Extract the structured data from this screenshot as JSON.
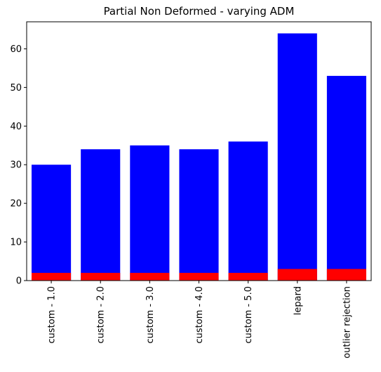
{
  "chart_data": {
    "type": "bar",
    "title": "Partial Non Deformed - varying ADM",
    "xlabel": "",
    "ylabel": "",
    "categories": [
      "custom - 1.0",
      "custom - 2.0",
      "custom - 3.0",
      "custom - 4.0",
      "custom - 5.0",
      "lepard",
      "outlier rejection"
    ],
    "series": [
      {
        "color": "#0000ff",
        "values": [
          30,
          34,
          35,
          34,
          36,
          64,
          53
        ]
      },
      {
        "color": "#ff0000",
        "values": [
          2,
          2,
          2,
          2,
          2,
          3,
          3
        ]
      }
    ],
    "ylim": [
      0,
      67
    ],
    "yticks": [
      0,
      10,
      20,
      30,
      40,
      50,
      60
    ],
    "grid": false,
    "overlay": true
  }
}
